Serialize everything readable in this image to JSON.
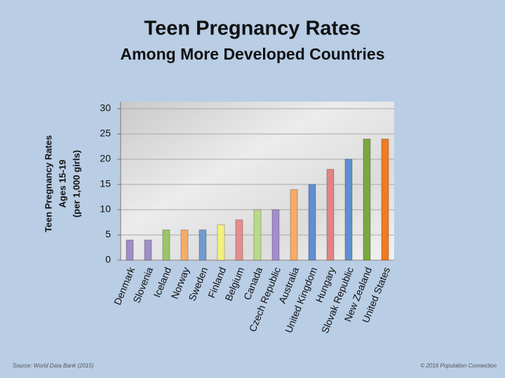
{
  "chart_data": {
    "type": "bar",
    "title": "Teen Pregnancy Rates",
    "subtitle": "Among More Developed Countries",
    "y_label": [
      "Teen Pregnancy Rates",
      "Ages 15-19",
      "(per 1,000 girls)"
    ],
    "categories": [
      "Denmark",
      "Slovenia",
      "Iceland",
      "Norway",
      "Sweden",
      "Finland",
      "Belgium",
      "Canada",
      "Czech Republic",
      "Australia",
      "United Kingdom",
      "Hungary",
      "Slovak Republic",
      "New Zealand",
      "United States"
    ],
    "values": [
      4,
      4,
      6,
      6,
      6,
      7,
      8,
      10,
      10,
      14,
      15,
      18,
      20,
      24,
      24
    ],
    "colors": [
      "#9d8fc6",
      "#9d8fc6",
      "#9cc567",
      "#f6ac66",
      "#6f9bd2",
      "#f4f07c",
      "#e48d8d",
      "#b9d98c",
      "#a38dca",
      "#f6ac66",
      "#5f8fd2",
      "#e48282",
      "#5f8fd2",
      "#79a840",
      "#f07b22"
    ],
    "ylim": [
      0,
      30
    ],
    "yticks": [
      0,
      5,
      10,
      15,
      20,
      25,
      30
    ],
    "grid": true,
    "source": "Source: World Data Bank (2015)",
    "credit": "© 2016 Population Connection"
  }
}
